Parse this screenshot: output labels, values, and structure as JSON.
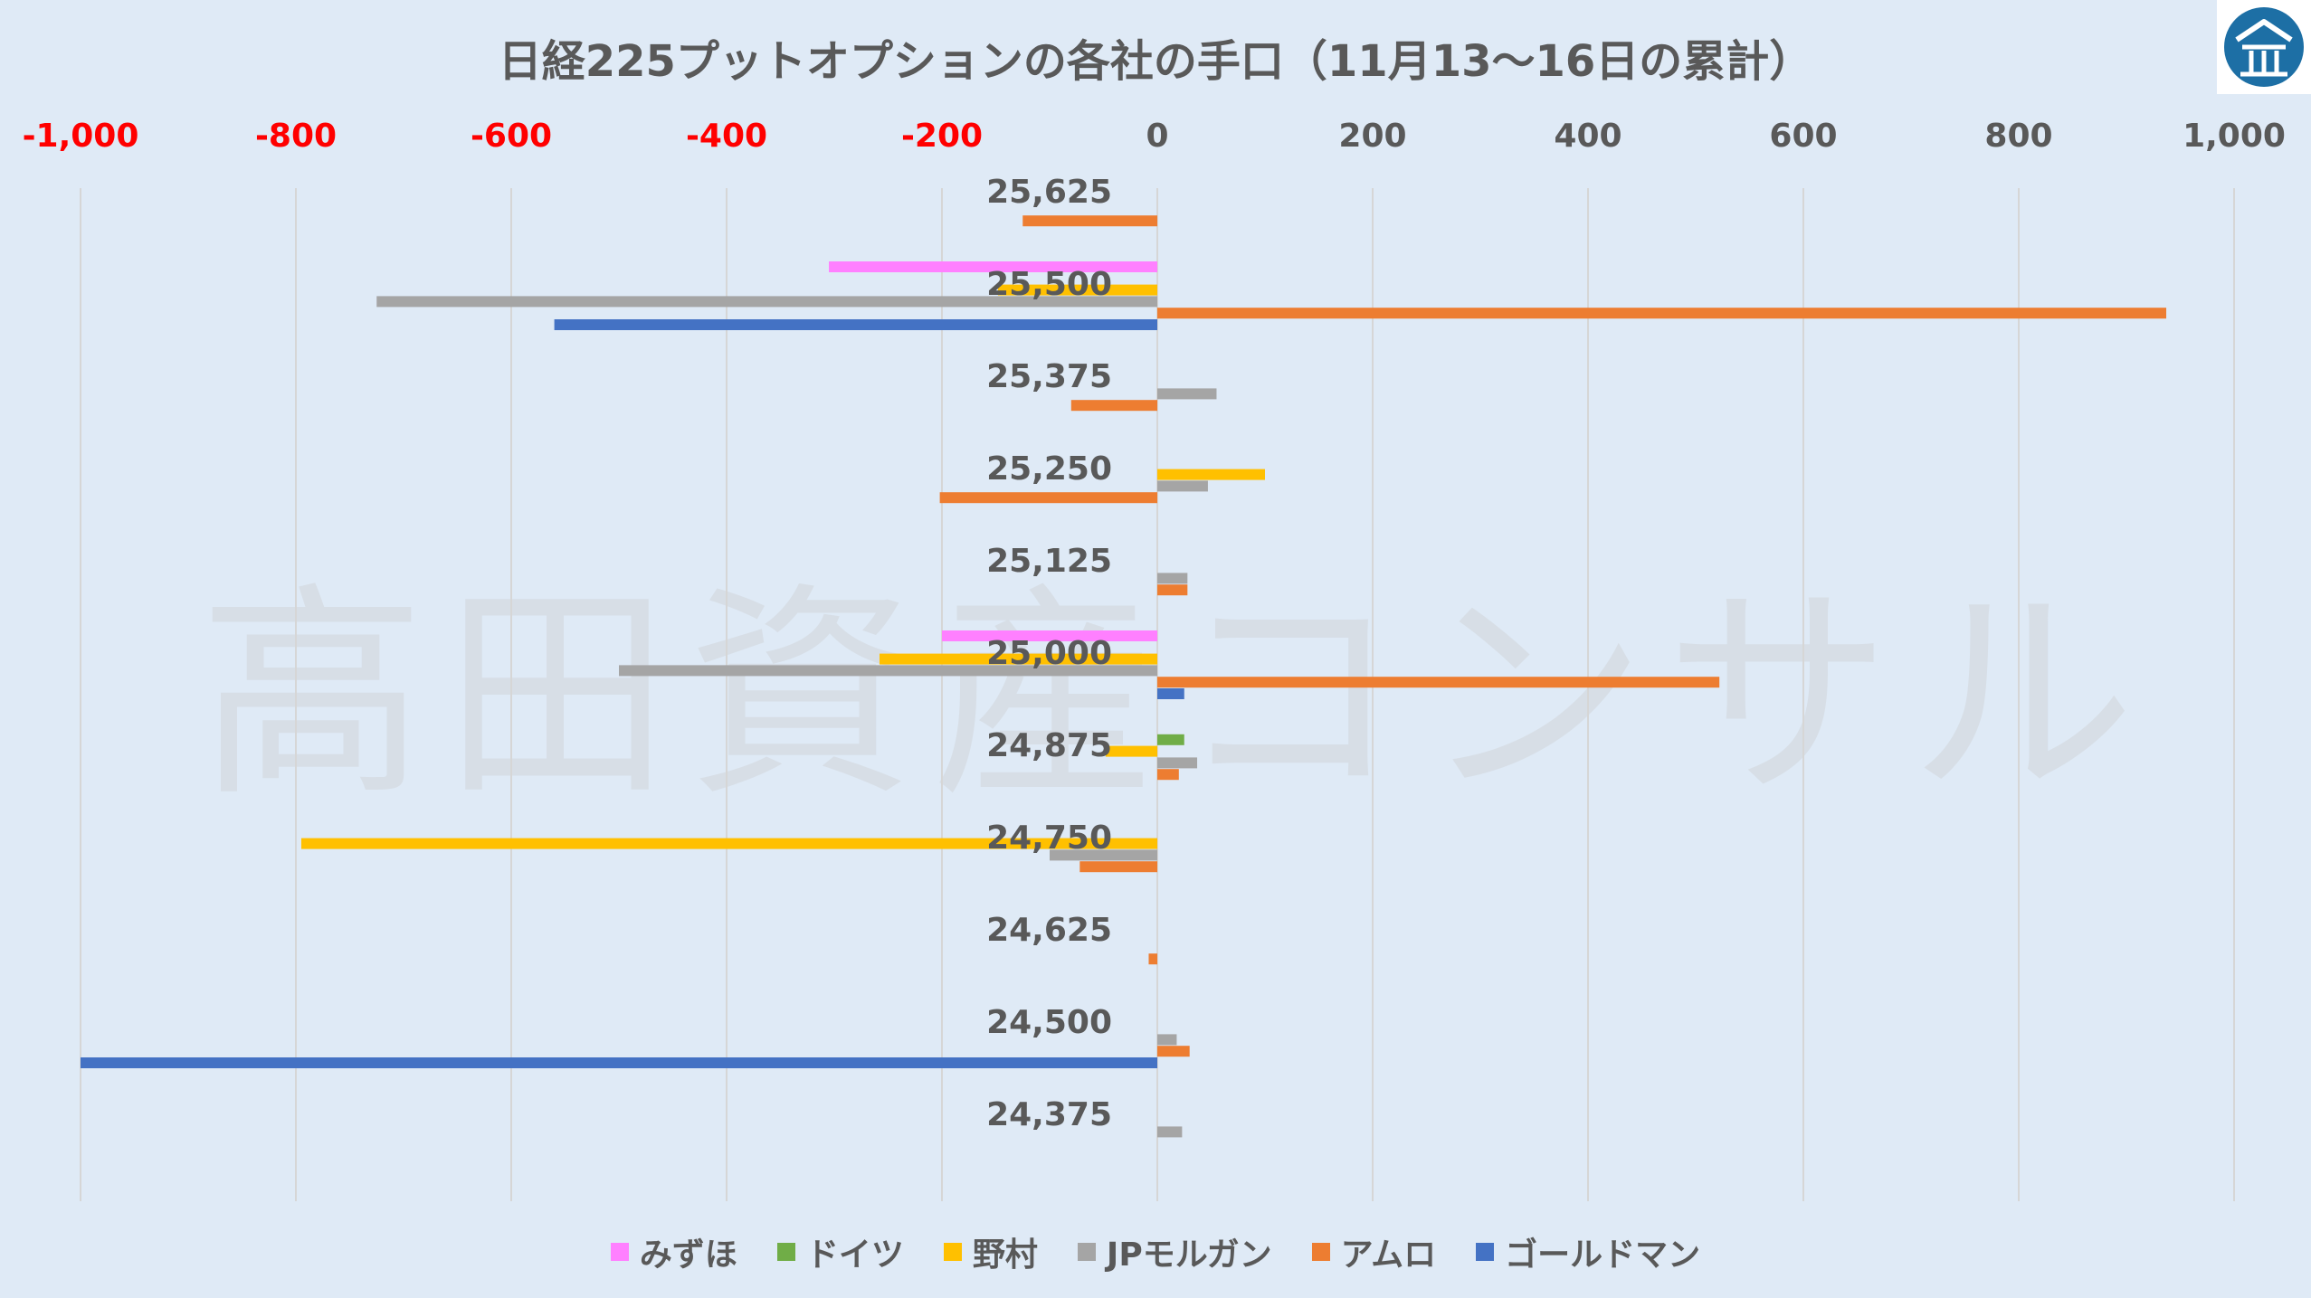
{
  "chart_data": {
    "type": "bar",
    "orientation": "horizontal",
    "title": "日経225プットオプションの各社の手口（11月13〜16日の累計）",
    "categories": [
      "25,625",
      "25,500",
      "25,375",
      "25,250",
      "25,125",
      "25,000",
      "24,875",
      "24,750",
      "24,625",
      "24,500",
      "24,375"
    ],
    "xlim": [
      -1000,
      1000
    ],
    "x_ticks": [
      "-1,000",
      "-800",
      "-600",
      "-400",
      "-200",
      "0",
      "200",
      "400",
      "600",
      "800",
      "1,000"
    ],
    "x_tick_values": [
      -1000,
      -800,
      -600,
      -400,
      -200,
      0,
      200,
      400,
      600,
      800,
      1000
    ],
    "negative_tick_color": "#ff0000",
    "positive_tick_color": "#595959",
    "x_axis_position": "top",
    "grid": true,
    "legend_position": "bottom",
    "watermark": "高田資産コンサル",
    "series": [
      {
        "name": "みずほ",
        "color": "#ff80ff",
        "values": [
          0,
          -305,
          0,
          0,
          0,
          -200,
          0,
          0,
          0,
          0,
          0
        ]
      },
      {
        "name": "ドイツ",
        "color": "#70ad47",
        "values": [
          0,
          0,
          0,
          0,
          0,
          0,
          25,
          0,
          0,
          0,
          0
        ]
      },
      {
        "name": "野村",
        "color": "#ffc000",
        "values": [
          0,
          -148,
          0,
          100,
          0,
          -258,
          -48,
          -795,
          0,
          0,
          0
        ]
      },
      {
        "name": "JPモルガン",
        "color": "#a5a5a5",
        "values": [
          0,
          -725,
          55,
          47,
          28,
          -500,
          37,
          -100,
          0,
          18,
          23
        ]
      },
      {
        "name": "アムロ",
        "color": "#ed7d31",
        "values": [
          -125,
          937,
          -80,
          -202,
          28,
          522,
          20,
          -72,
          -8,
          30,
          0
        ]
      },
      {
        "name": "ゴールドマン",
        "color": "#4472c4",
        "values": [
          0,
          -560,
          0,
          0,
          0,
          25,
          0,
          0,
          0,
          -1000,
          0
        ]
      }
    ]
  }
}
